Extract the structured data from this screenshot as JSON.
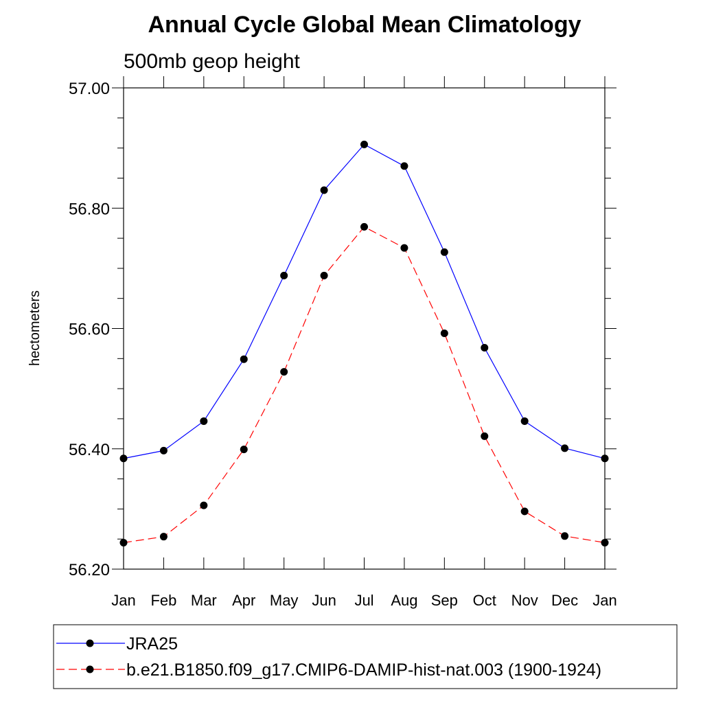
{
  "chart_data": {
    "type": "line",
    "title": "Annual Cycle Global Mean Climatology",
    "subtitle": "500mb geop height",
    "ylabel": "hectometers",
    "xlabel": "",
    "categories": [
      "Jan",
      "Feb",
      "Mar",
      "Apr",
      "May",
      "Jun",
      "Jul",
      "Aug",
      "Sep",
      "Oct",
      "Nov",
      "Dec",
      "Jan"
    ],
    "ylim": [
      56.2,
      57.0
    ],
    "yticks": [
      "56.20",
      "56.40",
      "56.60",
      "56.80",
      "57.00"
    ],
    "grid": false,
    "legend_position": "bottom",
    "series": [
      {
        "name": "JRA25",
        "color": "#0000ff",
        "line_style": "solid",
        "values": [
          56.384,
          56.397,
          56.446,
          56.549,
          56.688,
          56.83,
          56.906,
          56.87,
          56.727,
          56.568,
          56.446,
          56.401,
          56.384
        ]
      },
      {
        "name": "b.e21.B1850.f09_g17.CMIP6-DAMIP-hist-nat.003 (1900-1924)",
        "color": "#ff0000",
        "line_style": "dashed",
        "values": [
          56.244,
          56.254,
          56.306,
          56.399,
          56.528,
          56.688,
          56.769,
          56.734,
          56.592,
          56.421,
          56.296,
          56.255,
          56.244
        ]
      }
    ]
  }
}
